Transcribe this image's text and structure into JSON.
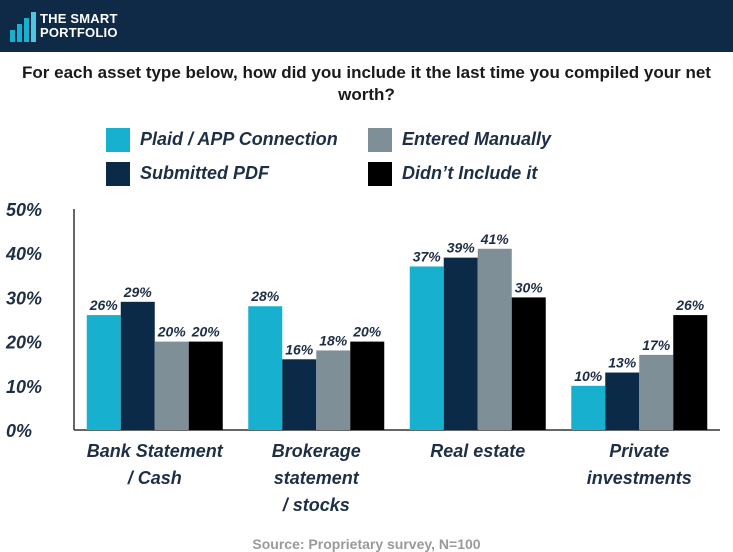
{
  "header": {
    "logo_line1": "THE SMART",
    "logo_line2": "PORTFOLIO",
    "logo_icon": "bar-growth-logo-icon"
  },
  "question": "For each asset type below, how did you include it the last time you compiled your net worth?",
  "source": "Source: Proprietary survey, N=100",
  "colors": {
    "header_bg": "#0e2a47",
    "plaid": "#17b1cf",
    "submitted_pdf": "#0b2a48",
    "entered_manually": "#7f8f98",
    "didnt_include": "#000000",
    "label_text": "#1e2f45"
  },
  "chart_data": {
    "type": "bar",
    "categories": [
      [
        "Bank Statement",
        "/ Cash"
      ],
      [
        "Brokerage",
        "statement",
        "/ stocks"
      ],
      [
        "Real estate"
      ],
      [
        "Private",
        "investments"
      ]
    ],
    "series": [
      {
        "name": "Plaid / APP Connection",
        "color": "#17b1cf",
        "values": [
          26,
          28,
          37,
          10
        ],
        "labels": [
          "26%",
          "28%",
          "37%",
          "10%"
        ]
      },
      {
        "name": "Submitted PDF",
        "color": "#0b2a48",
        "values": [
          29,
          16,
          39,
          13
        ],
        "labels": [
          "29%",
          "16%",
          "39%",
          "13%"
        ]
      },
      {
        "name": "Entered Manually",
        "color": "#7f8f98",
        "values": [
          20,
          18,
          41,
          17
        ],
        "labels": [
          "20%",
          "18%",
          "41%",
          "17%"
        ]
      },
      {
        "name": "Didn’t Include it",
        "color": "#000000",
        "values": [
          20,
          20,
          30,
          26
        ],
        "labels": [
          "20%",
          "20%",
          "30%",
          "26%"
        ]
      }
    ],
    "legend_order": [
      0,
      2,
      1,
      3
    ],
    "legend_placement": "top, two columns",
    "ylim": [
      0,
      50
    ],
    "yticks": [
      "0%",
      "10%",
      "20%",
      "30%",
      "40%",
      "50%"
    ],
    "ytick_values": [
      0,
      10,
      20,
      30,
      40,
      50
    ],
    "grid": false,
    "xlabel": "",
    "ylabel": ""
  }
}
